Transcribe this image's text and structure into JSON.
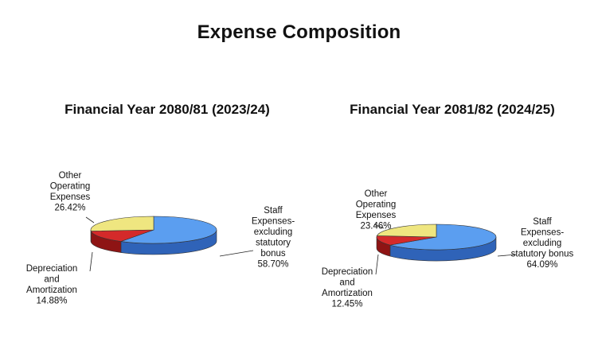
{
  "title": "Expense Composition",
  "colors": {
    "staff": "#5b9ef0",
    "staff_side": "#2f63b8",
    "depreciation": "#d42a2a",
    "depreciation_side": "#8e1414",
    "other": "#efe680",
    "other_side": "#bdb24a",
    "outline": "#333333"
  },
  "chart_data": [
    {
      "type": "pie",
      "title": "Financial Year 2080/81 (2023/24)",
      "categories": [
        "Staff Expenses-excluding statutory bonus",
        "Depreciation and Amortization",
        "Other Operating Expenses"
      ],
      "values": [
        58.7,
        14.88,
        26.42
      ],
      "labels": [
        {
          "lines": [
            "Staff",
            "Expenses-",
            "excluding",
            "statutory",
            "bonus",
            "58.70%"
          ]
        },
        {
          "lines": [
            "Depreciation",
            "and",
            "Amortization",
            "14.88%"
          ]
        },
        {
          "lines": [
            "Other",
            "Operating",
            "Expenses",
            "26.42%"
          ]
        }
      ]
    },
    {
      "type": "pie",
      "title": "Financial Year 2081/82 (2024/25)",
      "categories": [
        "Staff Expenses-excluding statutory bonus",
        "Depreciation and Amortization",
        "Other Operating Expenses"
      ],
      "values": [
        64.09,
        12.45,
        23.46
      ],
      "labels": [
        {
          "lines": [
            "Staff",
            "Expenses-",
            "excluding",
            "statutory bonus",
            "64.09%"
          ]
        },
        {
          "lines": [
            "Depreciation",
            "and",
            "Amortization",
            "12.45%"
          ]
        },
        {
          "lines": [
            "Other",
            "Operating",
            "Expenses",
            "23.46%"
          ]
        }
      ]
    }
  ]
}
